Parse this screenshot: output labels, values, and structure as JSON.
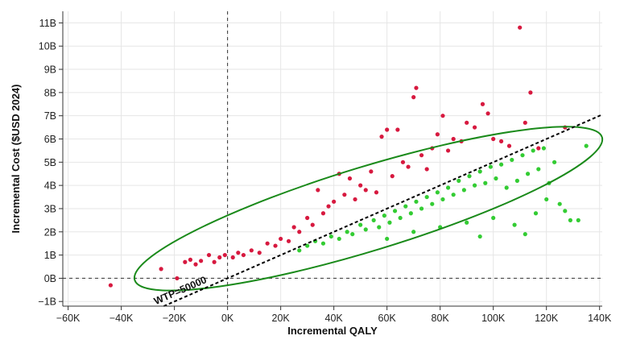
{
  "chart_data": {
    "type": "scatter",
    "title": "",
    "xlabel": "Incremental QALY",
    "ylabel": "Incremental Cost ($USD 2024)",
    "xlim": [
      -62000,
      141000
    ],
    "ylim": [
      -1200000000,
      11500000000
    ],
    "x_ticks": [
      -60000,
      -40000,
      -20000,
      0,
      20000,
      40000,
      60000,
      80000,
      100000,
      120000,
      140000
    ],
    "x_tick_labels": [
      "−60K",
      "−40K",
      "−20K",
      "0K",
      "20K",
      "40K",
      "60K",
      "80K",
      "100K",
      "120K",
      "140K"
    ],
    "y_ticks": [
      -1000000000,
      0,
      1000000000,
      2000000000,
      3000000000,
      4000000000,
      5000000000,
      6000000000,
      7000000000,
      8000000000,
      9000000000,
      10000000000,
      11000000000
    ],
    "y_tick_labels": [
      "−1B",
      "0B",
      "1B",
      "2B",
      "3B",
      "4B",
      "5B",
      "6B",
      "7B",
      "8B",
      "9B",
      "10B",
      "11B"
    ],
    "grid": true,
    "colors": {
      "above_wtp": "#d7193f",
      "below_wtp": "#33cc33",
      "ellipse": "#1a8a1a",
      "reference_lines": "#333333"
    },
    "wtp": {
      "value": 50000,
      "label": "WTP=50000"
    },
    "confidence_ellipse": {
      "center": [
        53000,
        3000000000
      ]
    },
    "reference_lines": {
      "x": 0,
      "y": 0
    },
    "series": [
      {
        "color": "#d7193f",
        "points": [
          [
            -44000,
            -300000000
          ],
          [
            -25000,
            400000000
          ],
          [
            -19000,
            0
          ],
          [
            -16000,
            700000000
          ],
          [
            -14000,
            800000000
          ],
          [
            -12000,
            600000000
          ],
          [
            -10000,
            750000000
          ],
          [
            -7000,
            1000000000
          ],
          [
            -5000,
            700000000
          ],
          [
            -3000,
            900000000
          ],
          [
            -1000,
            1000000000
          ],
          [
            2000,
            900000000
          ],
          [
            4000,
            1100000000
          ],
          [
            6000,
            1000000000
          ],
          [
            9000,
            1200000000
          ],
          [
            12000,
            1100000000
          ],
          [
            15000,
            1500000000
          ],
          [
            18000,
            1400000000
          ],
          [
            20000,
            1700000000
          ],
          [
            23000,
            1600000000
          ],
          [
            25000,
            2200000000
          ],
          [
            27000,
            2000000000
          ],
          [
            30000,
            2600000000
          ],
          [
            32000,
            2300000000
          ],
          [
            34000,
            3800000000
          ],
          [
            36000,
            2800000000
          ],
          [
            38000,
            3100000000
          ],
          [
            40000,
            3300000000
          ],
          [
            42000,
            4500000000
          ],
          [
            44000,
            3600000000
          ],
          [
            46000,
            4300000000
          ],
          [
            48000,
            3400000000
          ],
          [
            50000,
            4000000000
          ],
          [
            52000,
            3800000000
          ],
          [
            54000,
            4600000000
          ],
          [
            56000,
            3700000000
          ],
          [
            58000,
            6100000000
          ],
          [
            60000,
            6400000000
          ],
          [
            62000,
            4400000000
          ],
          [
            64000,
            6400000000
          ],
          [
            66000,
            5000000000
          ],
          [
            68000,
            4800000000
          ],
          [
            70000,
            7800000000
          ],
          [
            71000,
            8200000000
          ],
          [
            73000,
            5300000000
          ],
          [
            75000,
            4700000000
          ],
          [
            77000,
            5600000000
          ],
          [
            79000,
            6200000000
          ],
          [
            81000,
            7000000000
          ],
          [
            83000,
            5500000000
          ],
          [
            85000,
            6000000000
          ],
          [
            88000,
            5900000000
          ],
          [
            90000,
            6700000000
          ],
          [
            93000,
            6500000000
          ],
          [
            96000,
            7500000000
          ],
          [
            98000,
            7100000000
          ],
          [
            100000,
            6000000000
          ],
          [
            103000,
            5900000000
          ],
          [
            106000,
            5700000000
          ],
          [
            110000,
            10800000000
          ],
          [
            112000,
            6700000000
          ],
          [
            114000,
            8000000000
          ],
          [
            117000,
            5600000000
          ],
          [
            127000,
            6500000000
          ]
        ]
      },
      {
        "color": "#33cc33",
        "points": [
          [
            27000,
            1200000000
          ],
          [
            30000,
            1400000000
          ],
          [
            33000,
            1600000000
          ],
          [
            36000,
            1500000000
          ],
          [
            39000,
            1800000000
          ],
          [
            42000,
            1700000000
          ],
          [
            45000,
            2000000000
          ],
          [
            47000,
            1900000000
          ],
          [
            50000,
            2300000000
          ],
          [
            52000,
            2100000000
          ],
          [
            55000,
            2500000000
          ],
          [
            57000,
            2200000000
          ],
          [
            59000,
            2700000000
          ],
          [
            61000,
            2400000000
          ],
          [
            63000,
            2900000000
          ],
          [
            65000,
            2600000000
          ],
          [
            67000,
            3100000000
          ],
          [
            69000,
            2800000000
          ],
          [
            71000,
            3300000000
          ],
          [
            73000,
            3000000000
          ],
          [
            75000,
            3500000000
          ],
          [
            77000,
            3200000000
          ],
          [
            79000,
            3700000000
          ],
          [
            81000,
            3400000000
          ],
          [
            83000,
            3900000000
          ],
          [
            85000,
            3600000000
          ],
          [
            87000,
            4200000000
          ],
          [
            89000,
            3800000000
          ],
          [
            91000,
            4400000000
          ],
          [
            93000,
            4000000000
          ],
          [
            95000,
            4600000000
          ],
          [
            97000,
            4100000000
          ],
          [
            99000,
            4800000000
          ],
          [
            101000,
            4300000000
          ],
          [
            103000,
            4900000000
          ],
          [
            105000,
            3900000000
          ],
          [
            107000,
            5100000000
          ],
          [
            109000,
            4200000000
          ],
          [
            111000,
            5300000000
          ],
          [
            113000,
            4500000000
          ],
          [
            115000,
            5500000000
          ],
          [
            117000,
            4700000000
          ],
          [
            119000,
            5600000000
          ],
          [
            121000,
            4100000000
          ],
          [
            123000,
            5000000000
          ],
          [
            125000,
            3200000000
          ],
          [
            127000,
            2900000000
          ],
          [
            129000,
            2500000000
          ],
          [
            132000,
            2500000000
          ],
          [
            135000,
            5700000000
          ],
          [
            60000,
            1700000000
          ],
          [
            70000,
            2000000000
          ],
          [
            80000,
            2200000000
          ],
          [
            90000,
            2400000000
          ],
          [
            100000,
            2600000000
          ],
          [
            108000,
            2300000000
          ],
          [
            112000,
            1900000000
          ],
          [
            116000,
            2800000000
          ],
          [
            120000,
            3400000000
          ],
          [
            95000,
            1800000000
          ]
        ]
      }
    ]
  }
}
